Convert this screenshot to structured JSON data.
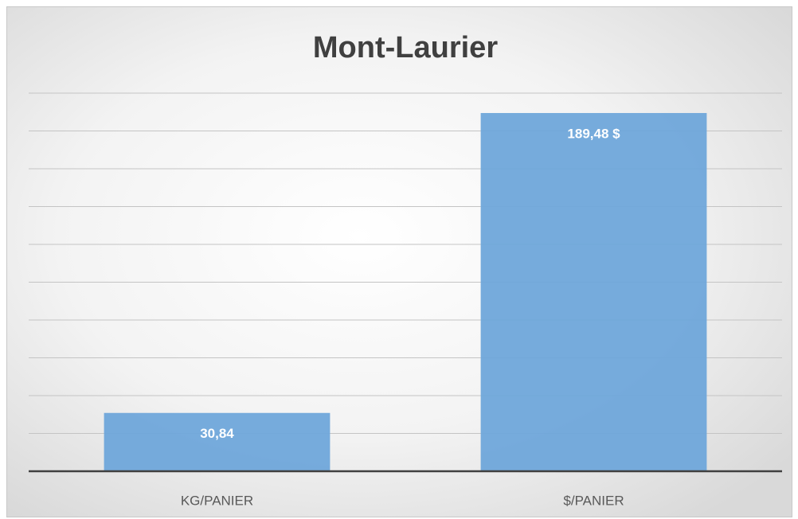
{
  "chart_data": {
    "type": "bar",
    "title": "Mont-Laurier",
    "categories": [
      "KG/PANIER",
      "$/PANIER"
    ],
    "values": [
      30.84,
      189.48
    ],
    "value_labels": [
      "30,84",
      "189,48 $"
    ],
    "color": "#6fa6da",
    "ylim": [
      0,
      200
    ],
    "yticks": [
      0,
      20,
      40,
      60,
      80,
      100,
      120,
      140,
      160,
      180,
      200
    ],
    "grid": true
  }
}
